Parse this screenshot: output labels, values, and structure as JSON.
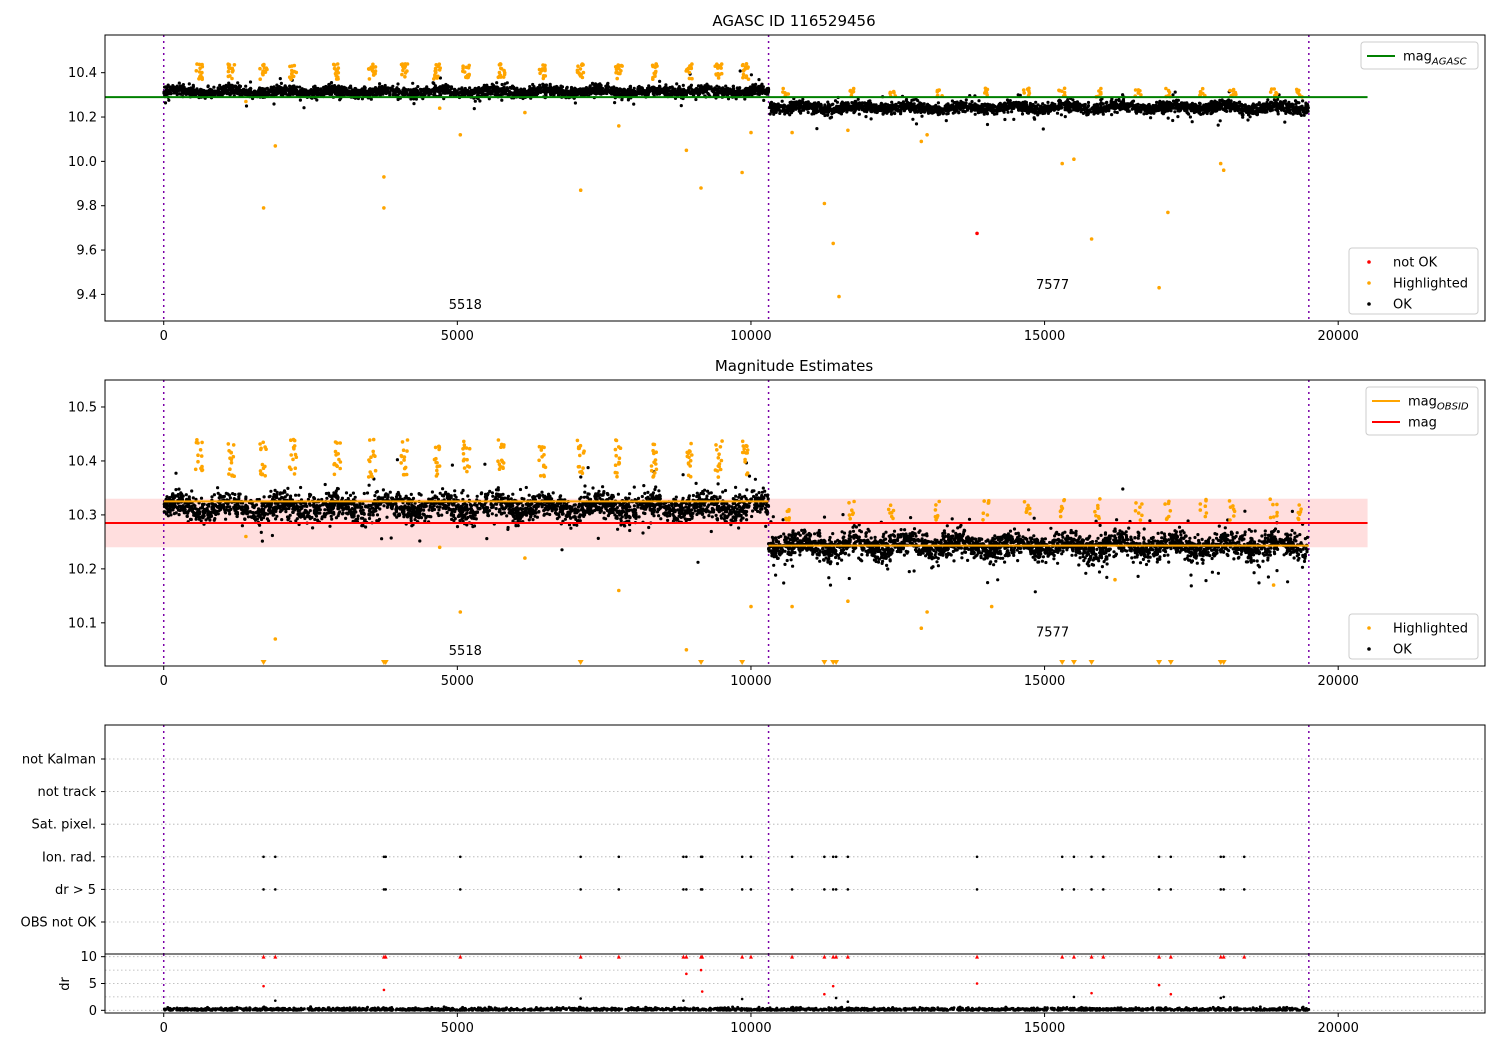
{
  "chart_data": [
    {
      "type": "scatter",
      "title": "AGASC ID 116529456",
      "xlim": [
        -1000,
        22500
      ],
      "ylim": [
        9.28,
        10.57
      ],
      "xticks": [
        0,
        5000,
        10000,
        15000,
        20000
      ],
      "yticks": [
        9.4,
        9.6,
        9.8,
        10.0,
        10.2,
        10.4
      ],
      "grid": false,
      "obs_boundaries": [
        0,
        10300,
        19500
      ],
      "obsids": [
        {
          "label": "5518",
          "x": 5000,
          "y": 9.335
        },
        {
          "label": "7577",
          "x": 15000,
          "y": 9.425
        }
      ],
      "ok_bands": [
        {
          "x_start": 0,
          "x_end": 10300,
          "center": 10.315,
          "spread": 0.03
        },
        {
          "x_start": 10300,
          "x_end": 19500,
          "center": 10.243,
          "spread": 0.03
        }
      ],
      "highlighted_points": [
        [
          1700,
          9.79
        ],
        [
          1900,
          10.07
        ],
        [
          3750,
          9.93
        ],
        [
          3750,
          9.79
        ],
        [
          5050,
          10.12
        ],
        [
          7100,
          9.87
        ],
        [
          7750,
          10.16
        ],
        [
          8900,
          10.05
        ],
        [
          9150,
          9.88
        ],
        [
          9850,
          9.95
        ],
        [
          10000,
          10.13
        ],
        [
          10700,
          10.13
        ],
        [
          11250,
          9.81
        ],
        [
          11400,
          9.63
        ],
        [
          11500,
          9.39
        ],
        [
          11650,
          10.14
        ],
        [
          12900,
          10.09
        ],
        [
          13000,
          10.12
        ],
        [
          15300,
          9.99
        ],
        [
          15500,
          10.01
        ],
        [
          15800,
          9.65
        ],
        [
          16950,
          9.43
        ],
        [
          17100,
          9.77
        ],
        [
          18000,
          9.99
        ],
        [
          18050,
          9.96
        ],
        [
          1400,
          10.27
        ],
        [
          4700,
          10.24
        ],
        [
          6150,
          10.22
        ]
      ],
      "not_ok_points": [
        [
          13850,
          9.675
        ]
      ],
      "hlines": [
        {
          "name": "mag_AGASC",
          "y": 10.29,
          "x_start": -1000,
          "x_end": 20500,
          "color": "#008000"
        }
      ],
      "legend_top": {
        "placement": "upper right",
        "entries": [
          {
            "label": "mag",
            "sub": "AGASC",
            "color": "#008000",
            "kind": "line"
          }
        ]
      },
      "legend_bottom": {
        "placement": "lower right",
        "entries": [
          {
            "label": "not OK",
            "color": "#ff0000",
            "kind": "dot"
          },
          {
            "label": "Highlighted",
            "color": "#ffa500",
            "kind": "dot"
          },
          {
            "label": "OK",
            "color": "#000000",
            "kind": "dot"
          }
        ]
      }
    },
    {
      "type": "scatter",
      "title": "Magnitude Estimates",
      "xlim": [
        -1000,
        22500
      ],
      "ylim": [
        10.02,
        10.55
      ],
      "xticks": [
        0,
        5000,
        10000,
        15000,
        20000
      ],
      "yticks": [
        10.1,
        10.2,
        10.3,
        10.4,
        10.5
      ],
      "grid": false,
      "obs_boundaries": [
        0,
        10300,
        19500
      ],
      "obsids": [
        {
          "label": "5518",
          "x": 5000,
          "y": 10.04
        },
        {
          "label": "7577",
          "x": 15000,
          "y": 10.075
        }
      ],
      "ok_bands": [
        {
          "x_start": 0,
          "x_end": 10300,
          "center": 10.315,
          "spread": 0.03
        },
        {
          "x_start": 10300,
          "x_end": 19500,
          "center": 10.243,
          "spread": 0.03
        }
      ],
      "mag_band": {
        "y_low": 10.24,
        "y_high": 10.33,
        "x_start": -1000,
        "x_end": 20500,
        "color": "#ffcccc"
      },
      "hlines": [
        {
          "name": "mag",
          "y": 10.285,
          "x_start": -1000,
          "x_end": 20500,
          "color": "#ff0000"
        }
      ],
      "obsid_lines": [
        {
          "y": 10.325,
          "x_start": 0,
          "x_end": 10300,
          "color": "#ffa500"
        },
        {
          "y": 10.243,
          "x_start": 10300,
          "x_end": 19500,
          "color": "#ffa500"
        }
      ],
      "highlighted_points": [
        [
          1400,
          10.26
        ],
        [
          1900,
          10.07
        ],
        [
          4700,
          10.24
        ],
        [
          5050,
          10.12
        ],
        [
          6150,
          10.22
        ],
        [
          7750,
          10.16
        ],
        [
          8900,
          10.05
        ],
        [
          10000,
          10.13
        ],
        [
          10700,
          10.13
        ],
        [
          11650,
          10.14
        ],
        [
          12900,
          10.09
        ],
        [
          13000,
          10.12
        ],
        [
          14100,
          10.13
        ],
        [
          16200,
          10.18
        ],
        [
          18900,
          10.17
        ]
      ],
      "clipped_markers": [
        1700,
        3750,
        3780,
        7100,
        9150,
        9850,
        11250,
        11400,
        11450,
        15300,
        15500,
        15800,
        16950,
        17150,
        18000,
        18050
      ],
      "legend_top": {
        "placement": "upper right",
        "entries": [
          {
            "label": "mag",
            "sub": "OBSID",
            "color": "#ffa500",
            "kind": "line"
          },
          {
            "label": "mag",
            "color": "#ff0000",
            "kind": "line"
          }
        ]
      },
      "legend_bottom": {
        "placement": "lower right",
        "entries": [
          {
            "label": "Highlighted",
            "color": "#ffa500",
            "kind": "dot"
          },
          {
            "label": "OK",
            "color": "#000000",
            "kind": "dot"
          }
        ]
      }
    },
    {
      "type": "scatter",
      "title": "",
      "xlim": [
        -1000,
        22500
      ],
      "xticks": [
        0,
        5000,
        10000,
        15000,
        20000
      ],
      "obs_boundaries": [
        0,
        10300,
        19500
      ],
      "flag_rows": [
        "not Kalman",
        "not track",
        "Sat. pixel.",
        "Ion. rad.",
        "dr > 5",
        "OBS not OK"
      ],
      "flag_x_values": [
        1700,
        1900,
        3750,
        3780,
        5050,
        7100,
        7750,
        8850,
        8900,
        9150,
        9170,
        9850,
        10000,
        10700,
        11250,
        11400,
        11450,
        11650,
        13850,
        15300,
        15500,
        15800,
        16000,
        16950,
        17150,
        18000,
        18050,
        18400
      ],
      "flagged_rows": [
        "Ion. rad.",
        "dr > 5"
      ],
      "dr": {
        "ylabel": "dr",
        "ylim": [
          -0.5,
          10.5
        ],
        "yticks": [
          0,
          5,
          10
        ],
        "baseline_max": 0.8,
        "clipped_value": 10,
        "mid_points": [
          [
            1700,
            4.5
          ],
          [
            3750,
            3.8
          ],
          [
            8900,
            6.8
          ],
          [
            9150,
            7.5
          ],
          [
            9170,
            3.5
          ],
          [
            11250,
            3.0
          ],
          [
            11400,
            4.5
          ],
          [
            13850,
            5.0
          ],
          [
            15800,
            3.2
          ],
          [
            16950,
            4.7
          ],
          [
            17150,
            3.0
          ],
          [
            7100,
            2.2
          ],
          [
            8850,
            1.8
          ],
          [
            9850,
            2.1
          ],
          [
            11450,
            2.3
          ],
          [
            11650,
            1.6
          ],
          [
            15500,
            2.5
          ],
          [
            18000,
            2.3
          ],
          [
            18050,
            2.5
          ],
          [
            1900,
            1.8
          ]
        ]
      }
    }
  ]
}
